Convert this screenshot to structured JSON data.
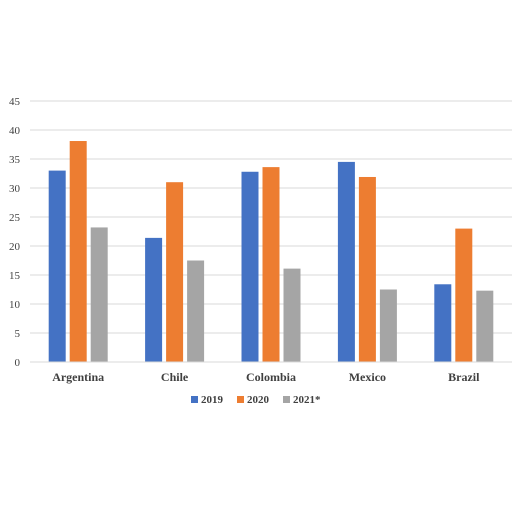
{
  "chart_data": {
    "type": "bar",
    "categories": [
      "Argentina",
      "Chile",
      "Colombia",
      "Mexico",
      "Brazil"
    ],
    "series": [
      {
        "name": "2019",
        "color": "#4472C4",
        "values": [
          33.0,
          21.4,
          32.8,
          34.5,
          13.4
        ]
      },
      {
        "name": "2020",
        "color": "#ED7D31",
        "values": [
          38.1,
          31.0,
          33.6,
          31.9,
          23.0
        ]
      },
      {
        "name": "2021*",
        "color": "#A5A5A5",
        "values": [
          23.2,
          17.5,
          16.1,
          12.5,
          12.3
        ]
      }
    ],
    "title": "",
    "xlabel": "",
    "ylabel": "",
    "ylim": [
      0,
      45
    ],
    "yticks": [
      "0",
      "5",
      "10",
      "15",
      "20",
      "25",
      "30",
      "35",
      "40",
      "45"
    ],
    "grid": true,
    "legend_position": "bottom"
  }
}
